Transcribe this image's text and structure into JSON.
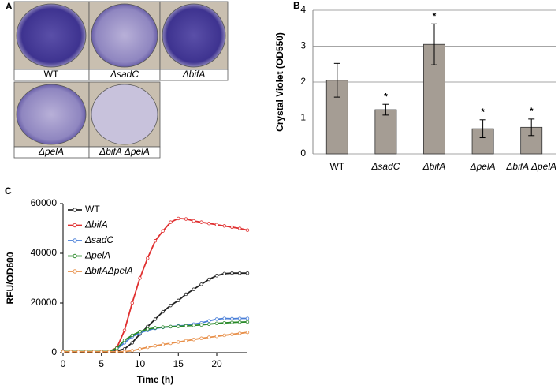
{
  "image_panel": {
    "label": "A",
    "captions": [
      "WT",
      "ΔsadC",
      "ΔbifA",
      "ΔpelA",
      "ΔbifA ΔpelA"
    ]
  },
  "chart_data": [
    {
      "type": "bar",
      "panel_label": "B",
      "y_label": "Crystal Violet (OD550)",
      "categories": [
        "WT",
        "ΔsadC",
        "ΔbifA",
        "ΔpelA",
        "ΔbifA ΔpelA"
      ],
      "values": [
        2.05,
        1.23,
        3.05,
        0.7,
        0.74
      ],
      "errors": [
        0.47,
        0.15,
        0.57,
        0.25,
        0.23
      ],
      "significance": [
        null,
        "*",
        "*",
        "*",
        "*"
      ],
      "color": "#a59d94",
      "ylim": [
        0,
        4
      ],
      "yticks": [
        0,
        1,
        2,
        3,
        4
      ],
      "grid": true
    },
    {
      "type": "line",
      "panel_label": "C",
      "x_label": "Time (h)",
      "y_label": "RFU/OD600",
      "x": [
        0,
        1,
        2,
        3,
        4,
        5,
        6,
        7,
        8,
        9,
        10,
        11,
        12,
        13,
        14,
        15,
        16,
        17,
        18,
        19,
        20,
        21,
        22,
        23,
        24
      ],
      "xlim": [
        0,
        24
      ],
      "xticks": [
        0,
        5,
        10,
        15,
        20
      ],
      "ylim": [
        0,
        60000
      ],
      "yticks": [
        0,
        20000,
        40000,
        60000
      ],
      "legend": "upper left",
      "series": [
        {
          "name": "WT",
          "color": "#222222",
          "values": [
            500,
            500,
            500,
            500,
            500,
            500,
            500,
            700,
            1500,
            4000,
            7500,
            10500,
            13500,
            16500,
            19000,
            21000,
            23500,
            25500,
            27500,
            29500,
            31000,
            31800,
            32000,
            32000,
            32000
          ]
        },
        {
          "name": "ΔbifA",
          "color": "#e03030",
          "values": [
            500,
            500,
            500,
            500,
            500,
            500,
            500,
            2000,
            9000,
            20000,
            30000,
            38000,
            45000,
            49000,
            52500,
            54000,
            53800,
            53000,
            52500,
            52000,
            51500,
            51000,
            50500,
            50000,
            49300
          ]
        },
        {
          "name": "ΔsadC",
          "color": "#4a7fd8",
          "values": [
            500,
            500,
            500,
            500,
            500,
            500,
            500,
            1500,
            4000,
            6500,
            8000,
            9000,
            9800,
            10200,
            10500,
            10800,
            11000,
            11500,
            12000,
            12800,
            13500,
            13800,
            13700,
            13800,
            13800
          ]
        },
        {
          "name": "ΔpelA",
          "color": "#2a8a2a",
          "values": [
            500,
            500,
            500,
            500,
            500,
            500,
            500,
            1800,
            5000,
            7000,
            8500,
            9500,
            10000,
            10300,
            10500,
            10600,
            10800,
            11000,
            11200,
            11500,
            11800,
            12000,
            12200,
            12300,
            12400
          ]
        },
        {
          "name": "ΔbifAΔpelA",
          "color": "#e8904a",
          "values": [
            400,
            400,
            400,
            400,
            400,
            400,
            400,
            400,
            400,
            800,
            1500,
            2200,
            2800,
            3300,
            3800,
            4300,
            4800,
            5300,
            5800,
            6200,
            6600,
            7000,
            7400,
            7800,
            8200
          ]
        }
      ]
    }
  ]
}
